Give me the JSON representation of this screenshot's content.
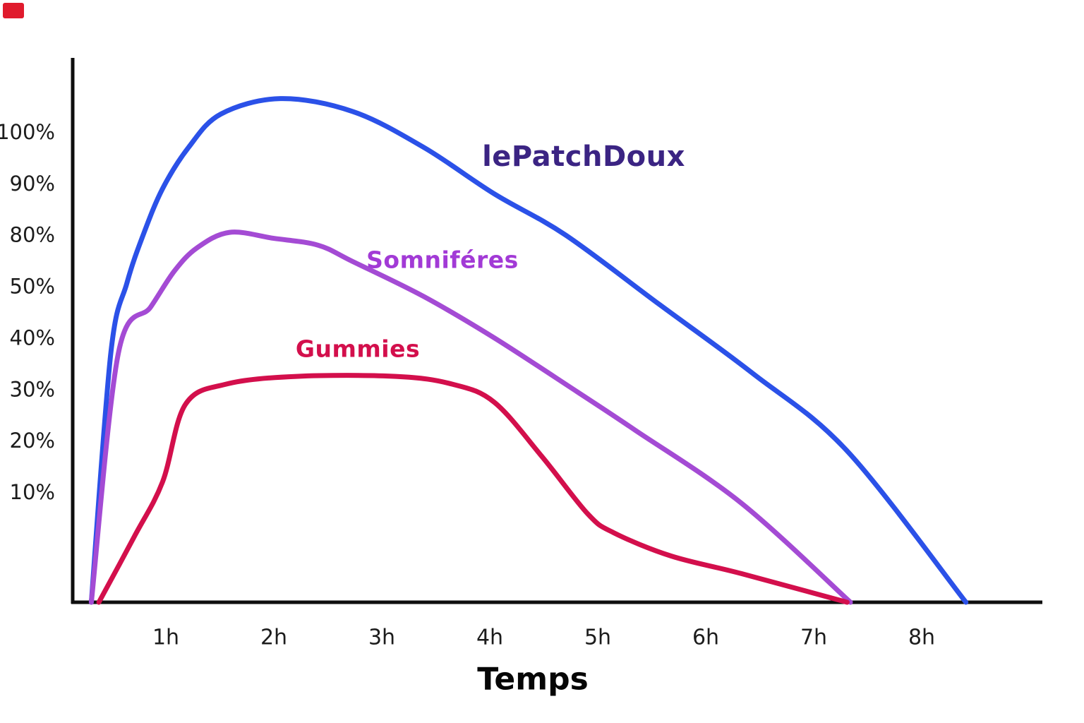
{
  "page": {
    "background": "#ffffff"
  },
  "corner_mark": {
    "color": "#e01b2d"
  },
  "chart_data": {
    "type": "line",
    "title": "",
    "xlabel": "Temps",
    "ylabel": "",
    "grid": false,
    "legend_position": "inline-labels",
    "x_ticks": [
      "1h",
      "2h",
      "3h",
      "4h",
      "5h",
      "6h",
      "7h",
      "8h"
    ],
    "y_ticks": [
      "100%",
      "90%",
      "80%",
      "50%",
      "40%",
      "30%",
      "20%",
      "10%"
    ],
    "y_tick_values": [
      100,
      90,
      80,
      50,
      40,
      30,
      20,
      10
    ],
    "x_axis_unit": "hours",
    "axis_color": "#0e0e0e",
    "tick_text_color": "#1c1c1c",
    "series": [
      {
        "name": "lePatchDoux",
        "color": "#2b51e8",
        "label_color": "#3b2483",
        "points": [
          [
            0.31,
            0
          ],
          [
            0.49,
            37
          ],
          [
            0.64,
            52
          ],
          [
            0.79,
            80
          ],
          [
            0.97,
            89
          ],
          [
            1.21,
            97
          ],
          [
            1.51,
            103.5
          ],
          [
            2.06,
            106.5
          ],
          [
            2.73,
            104
          ],
          [
            3.39,
            97
          ],
          [
            4.04,
            88
          ],
          [
            4.7,
            80
          ],
          [
            5.57,
            46.5
          ],
          [
            6.44,
            33
          ],
          [
            7.31,
            18
          ],
          [
            8.41,
            0
          ]
        ]
      },
      {
        "name": "Somniféres",
        "color": "#a44bd4",
        "label_color": "#a23ad6",
        "points": [
          [
            0.31,
            0
          ],
          [
            0.56,
            37
          ],
          [
            0.86,
            46
          ],
          [
            1.08,
            59
          ],
          [
            1.29,
            72.5
          ],
          [
            1.59,
            80.5
          ],
          [
            2.0,
            78
          ],
          [
            2.41,
            74
          ],
          [
            2.73,
            64.5
          ],
          [
            3.39,
            48
          ],
          [
            4.04,
            40
          ],
          [
            4.81,
            29.5
          ],
          [
            5.35,
            22
          ],
          [
            6.33,
            9
          ],
          [
            7.34,
            0
          ]
        ]
      },
      {
        "name": "Gummies",
        "color": "#d30f4c",
        "label_color": "#d30f4c",
        "points": [
          [
            0.38,
            0
          ],
          [
            0.71,
            6
          ],
          [
            0.97,
            12
          ],
          [
            1.18,
            27
          ],
          [
            1.56,
            31
          ],
          [
            2.21,
            32.5
          ],
          [
            3.13,
            32.5
          ],
          [
            3.65,
            31
          ],
          [
            4.04,
            27.5
          ],
          [
            4.48,
            17
          ],
          [
            4.91,
            8
          ],
          [
            5.15,
            6.3
          ],
          [
            5.68,
            4.2
          ],
          [
            6.33,
            2.6
          ],
          [
            7.31,
            0
          ]
        ]
      }
    ]
  }
}
